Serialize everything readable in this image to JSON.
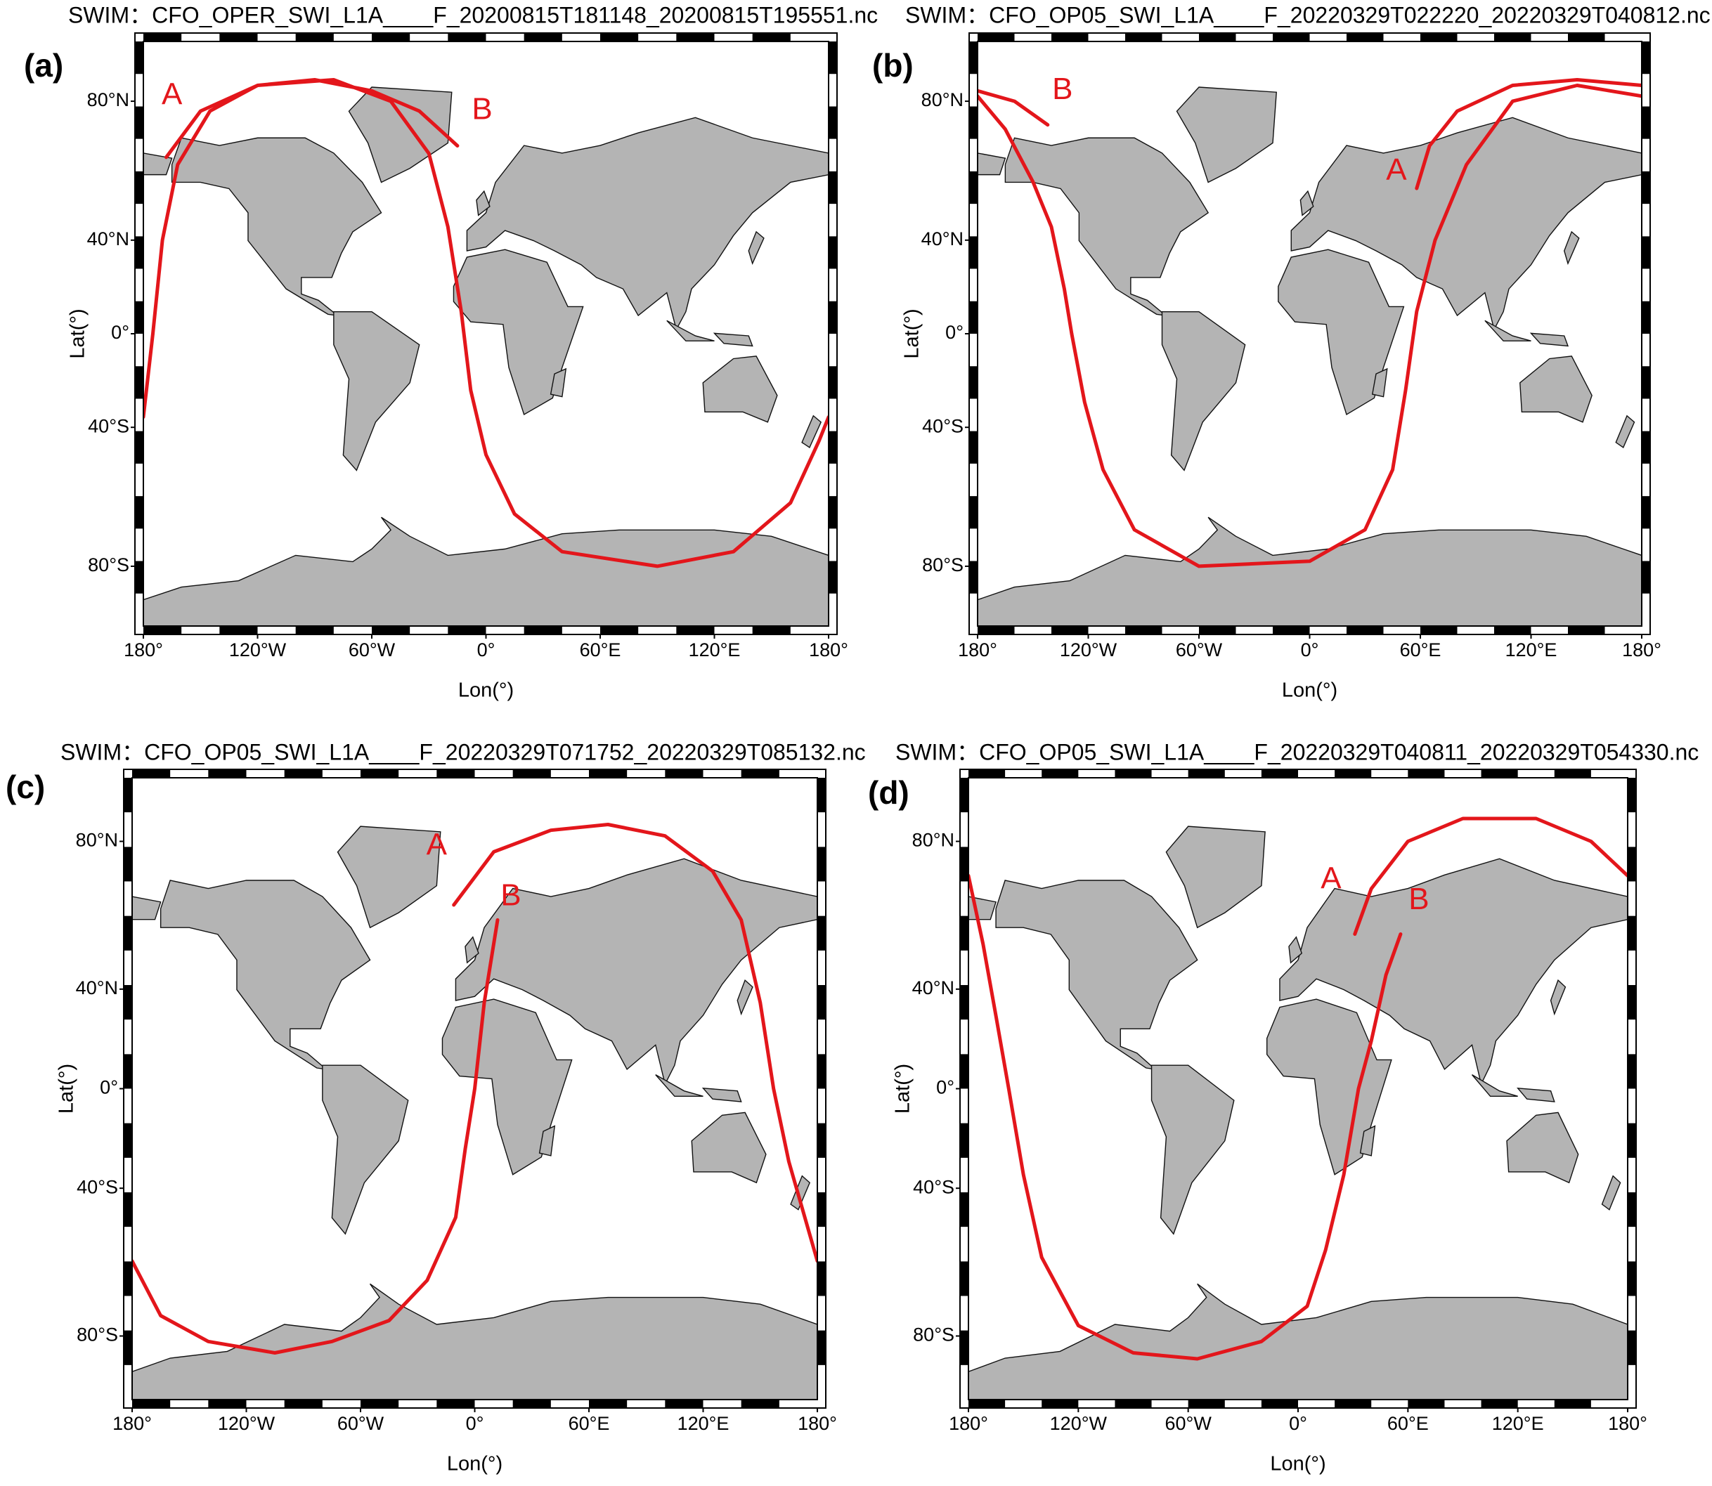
{
  "chart_data": [
    {
      "type": "map",
      "projection": "miller",
      "panel_label": "(a)",
      "title": "SWIM：CFO_OPER_SWI_L1A____F_20200815T181148_20200815T195551.nc",
      "xlabel": "Lon(°)",
      "ylabel": "Lat(°)",
      "xlim": [
        -180,
        180
      ],
      "ylim": [
        -90,
        90
      ],
      "xticks": [
        {
          "value": -180,
          "label": "180°"
        },
        {
          "value": -120,
          "label": "120°W"
        },
        {
          "value": -60,
          "label": "60°W"
        },
        {
          "value": 0,
          "label": "0°"
        },
        {
          "value": 60,
          "label": "60°E"
        },
        {
          "value": 120,
          "label": "120°E"
        },
        {
          "value": 180,
          "label": "180°"
        }
      ],
      "yticks": [
        {
          "value": 80,
          "label": "80°N"
        },
        {
          "value": 40,
          "label": "40°N"
        },
        {
          "value": 0,
          "label": "0°"
        },
        {
          "value": -40,
          "label": "40°S"
        },
        {
          "value": -80,
          "label": "80°S"
        }
      ],
      "series": [
        {
          "color": "#e3161b",
          "x": [
            -168,
            -150,
            -120,
            -90,
            -60,
            -35,
            -15,
            null,
            -180,
            -175,
            -170,
            -162,
            -145,
            -120,
            -80,
            -50,
            -30,
            -20,
            -13,
            -8,
            0,
            15,
            40,
            90,
            130,
            160,
            175,
            180
          ],
          "values": [
            67,
            78,
            83,
            84,
            82,
            78,
            70,
            null,
            -36,
            0,
            40,
            65,
            78,
            83,
            84,
            80,
            68,
            45,
            10,
            -25,
            -50,
            -68,
            -77,
            -80,
            -77,
            -65,
            -45,
            -36
          ]
        }
      ],
      "annotations": [
        {
          "text": "A",
          "x": -165,
          "y": 81
        },
        {
          "text": "B",
          "x": -2,
          "y": 78
        }
      ]
    },
    {
      "type": "map",
      "projection": "miller",
      "panel_label": "(b)",
      "title": "SWIM：CFO_OP05_SWI_L1A____F_20220329T022220_20220329T040812.nc",
      "xlabel": "Lon(°)",
      "ylabel": "Lat(°)",
      "xlim": [
        -180,
        180
      ],
      "ylim": [
        -90,
        90
      ],
      "xticks": [
        {
          "value": -180,
          "label": "180°"
        },
        {
          "value": -120,
          "label": "120°W"
        },
        {
          "value": -60,
          "label": "60°W"
        },
        {
          "value": 0,
          "label": "0°"
        },
        {
          "value": 60,
          "label": "60°E"
        },
        {
          "value": 120,
          "label": "120°E"
        },
        {
          "value": 180,
          "label": "180°"
        }
      ],
      "yticks": [
        {
          "value": 80,
          "label": "80°N"
        },
        {
          "value": 40,
          "label": "40°N"
        },
        {
          "value": 0,
          "label": "0°"
        },
        {
          "value": -40,
          "label": "40°S"
        },
        {
          "value": -80,
          "label": "80°S"
        }
      ],
      "series": [
        {
          "color": "#e3161b",
          "x": [
            -180,
            -165,
            -150,
            -140,
            -133,
            -129,
            -122,
            -112,
            -95,
            -60,
            0,
            30,
            45,
            52,
            58,
            68,
            85,
            110,
            145,
            180,
            null,
            58,
            65,
            80,
            110,
            145,
            180,
            null,
            -180,
            -160,
            -142
          ],
          "values": [
            81,
            74,
            60,
            45,
            20,
            0,
            -30,
            -55,
            -72,
            -80,
            -79,
            -72,
            -55,
            -25,
            10,
            40,
            65,
            80,
            83,
            81,
            null,
            58,
            70,
            78,
            83,
            84,
            83,
            null,
            82,
            80,
            75
          ]
        }
      ],
      "annotations": [
        {
          "text": "A",
          "x": 47,
          "y": 63
        },
        {
          "text": "B",
          "x": -134,
          "y": 82
        }
      ]
    },
    {
      "type": "map",
      "projection": "miller",
      "panel_label": "(c)",
      "title": "SWIM：CFO_OP05_SWI_L1A____F_20220329T071752_20220329T085132.nc",
      "xlabel": "Lon(°)",
      "ylabel": "Lat(°)",
      "xlim": [
        -180,
        180
      ],
      "ylim": [
        -90,
        90
      ],
      "xticks": [
        {
          "value": -180,
          "label": "180°"
        },
        {
          "value": -120,
          "label": "120°W"
        },
        {
          "value": -60,
          "label": "60°W"
        },
        {
          "value": 0,
          "label": "0°"
        },
        {
          "value": 60,
          "label": "60°E"
        },
        {
          "value": 120,
          "label": "120°E"
        },
        {
          "value": 180,
          "label": "180°"
        }
      ],
      "yticks": [
        {
          "value": 80,
          "label": "80°N"
        },
        {
          "value": 40,
          "label": "40°N"
        },
        {
          "value": 0,
          "label": "0°"
        },
        {
          "value": -40,
          "label": "40°S"
        },
        {
          "value": -80,
          "label": "80°S"
        }
      ],
      "series": [
        {
          "color": "#e3161b",
          "x": [
            -180,
            -165,
            -140,
            -105,
            -75,
            -45,
            -25,
            -10,
            -5,
            0,
            5,
            12,
            null,
            -11,
            10,
            40,
            70,
            100,
            125,
            140,
            150,
            157,
            165,
            180
          ],
          "values": [
            -63,
            -76,
            -81,
            -83,
            -81,
            -77,
            -68,
            -50,
            -25,
            0,
            35,
            62,
            null,
            66,
            78,
            82,
            83,
            81,
            74,
            62,
            35,
            0,
            -30,
            -63
          ]
        }
      ],
      "annotations": [
        {
          "text": "A",
          "x": -20,
          "y": 79
        },
        {
          "text": "B",
          "x": 19,
          "y": 68
        }
      ]
    },
    {
      "type": "map",
      "projection": "miller",
      "panel_label": "(d)",
      "title": "SWIM：CFO_OP05_SWI_L1A____F_20220329T040811_20220329T054330.nc",
      "xlabel": "Lon(°)",
      "ylabel": "Lat(°)",
      "xlim": [
        -180,
        180
      ],
      "ylim": [
        -90,
        90
      ],
      "xticks": [
        {
          "value": -180,
          "label": "180°"
        },
        {
          "value": -120,
          "label": "120°W"
        },
        {
          "value": -60,
          "label": "60°W"
        },
        {
          "value": 0,
          "label": "0°"
        },
        {
          "value": 60,
          "label": "60°E"
        },
        {
          "value": 120,
          "label": "120°E"
        },
        {
          "value": 180,
          "label": "180°"
        }
      ],
      "yticks": [
        {
          "value": 80,
          "label": "80°N"
        },
        {
          "value": 40,
          "label": "40°N"
        },
        {
          "value": 0,
          "label": "0°"
        },
        {
          "value": -40,
          "label": "40°S"
        },
        {
          "value": -80,
          "label": "80°S"
        }
      ],
      "series": [
        {
          "color": "#e3161b",
          "x": [
            -180,
            -172,
            -165,
            -158,
            -150,
            -140,
            -120,
            -90,
            -55,
            -20,
            5,
            15,
            25,
            33,
            40,
            48,
            56,
            null,
            31,
            40,
            60,
            90,
            130,
            160,
            180
          ],
          "values": [
            73,
            55,
            30,
            0,
            -35,
            -62,
            -78,
            -83,
            -84,
            -81,
            -74,
            -60,
            -35,
            0,
            20,
            45,
            58,
            null,
            58,
            70,
            80,
            84,
            84,
            80,
            73
          ]
        }
      ],
      "annotations": [
        {
          "text": "A",
          "x": 18,
          "y": 72
        },
        {
          "text": "B",
          "x": 66,
          "y": 67
        }
      ]
    }
  ]
}
